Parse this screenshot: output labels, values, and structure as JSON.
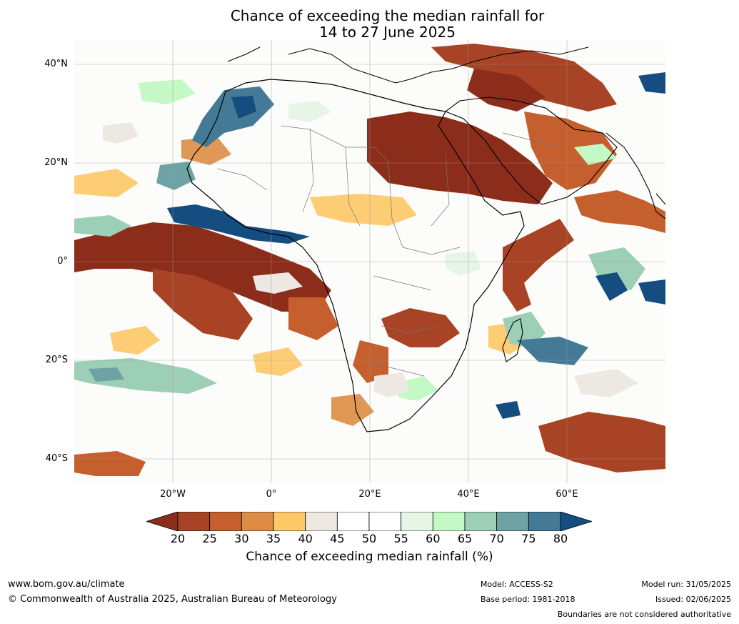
{
  "title": {
    "line1": "Chance of exceeding the median rainfall for",
    "line2": "14 to 27 June 2025"
  },
  "axes": {
    "lat_labels": [
      "40°N",
      "20°N",
      "0°",
      "20°S",
      "40°S"
    ],
    "lon_labels": [
      "20°W",
      "0°",
      "20°E",
      "40°E",
      "60°E"
    ],
    "lat_range": [
      -45,
      45
    ],
    "lon_range": [
      -40,
      80
    ],
    "grid": true
  },
  "colorbar": {
    "label": "Chance of exceeding median rainfall (%)",
    "ticks": [
      "20",
      "25",
      "30",
      "35",
      "40",
      "45",
      "50",
      "55",
      "60",
      "65",
      "70",
      "75",
      "80"
    ],
    "colors": [
      "#8c2d1b",
      "#a84325",
      "#c55f2e",
      "#dc8d43",
      "#fdc867",
      "#ede8e2",
      "#ffffff",
      "#ffffff",
      "#e6f5e6",
      "#c4f8c5",
      "#9ccfb6",
      "#6da3a4",
      "#457a96",
      "#154d80"
    ]
  },
  "footer": {
    "website": "www.bom.gov.au/climate",
    "copyright": "© Commonwealth of Australia 2025, Australian Bureau of Meteorology",
    "model": "Model: ACCESS-S2",
    "base_period": "Base period: 1981-2018",
    "model_run": "Model run: 31/05/2025",
    "issued": "Issued: 02/06/2025",
    "disclaimer": "Boundaries are not considered authoritative"
  }
}
